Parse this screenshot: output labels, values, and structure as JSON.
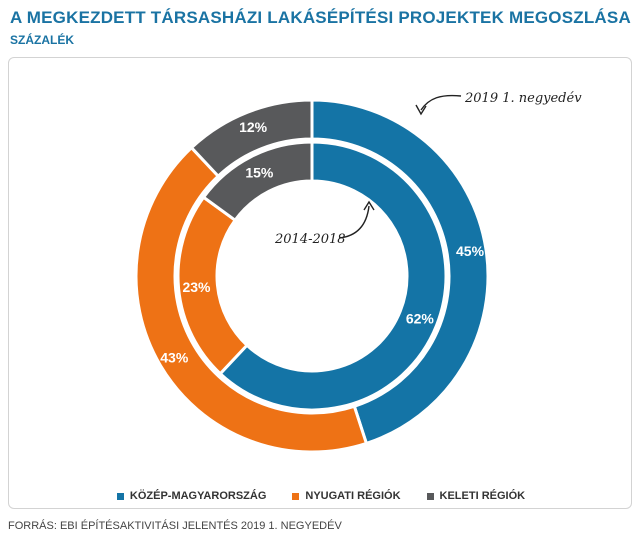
{
  "header": {
    "title": "A MEGKEZDETT TÁRSASHÁZI LAKÁSÉPÍTÉSI PROJEKTEK MEGOSZLÁSA",
    "subtitle": "SZÁZALÉK"
  },
  "footer": {
    "source": "FORRÁS: EBI ÉPÍTÉSAKTIVITÁSI JELENTÉS 2019 1. NEGYEDÉV"
  },
  "colors": {
    "kozep": "#1474a6",
    "nyugat": "#ee7215",
    "kelet": "#58595b",
    "title": "#1a73a3"
  },
  "chart_data": {
    "type": "pie",
    "categories": [
      "KÖZÉP-MAGYARORSZÁG",
      "NYUGATI RÉGIÓK",
      "KELETI RÉGIÓK"
    ],
    "series": [
      {
        "name": "2019 1. negyedév",
        "values": [
          45,
          43,
          12
        ]
      },
      {
        "name": "2014-2018",
        "values": [
          62,
          23,
          15
        ]
      }
    ],
    "value_labels": {
      "outer": [
        "45%",
        "43%",
        "12%"
      ],
      "inner": [
        "62%",
        "23%",
        "15%"
      ]
    },
    "legend_position": "bottom"
  }
}
